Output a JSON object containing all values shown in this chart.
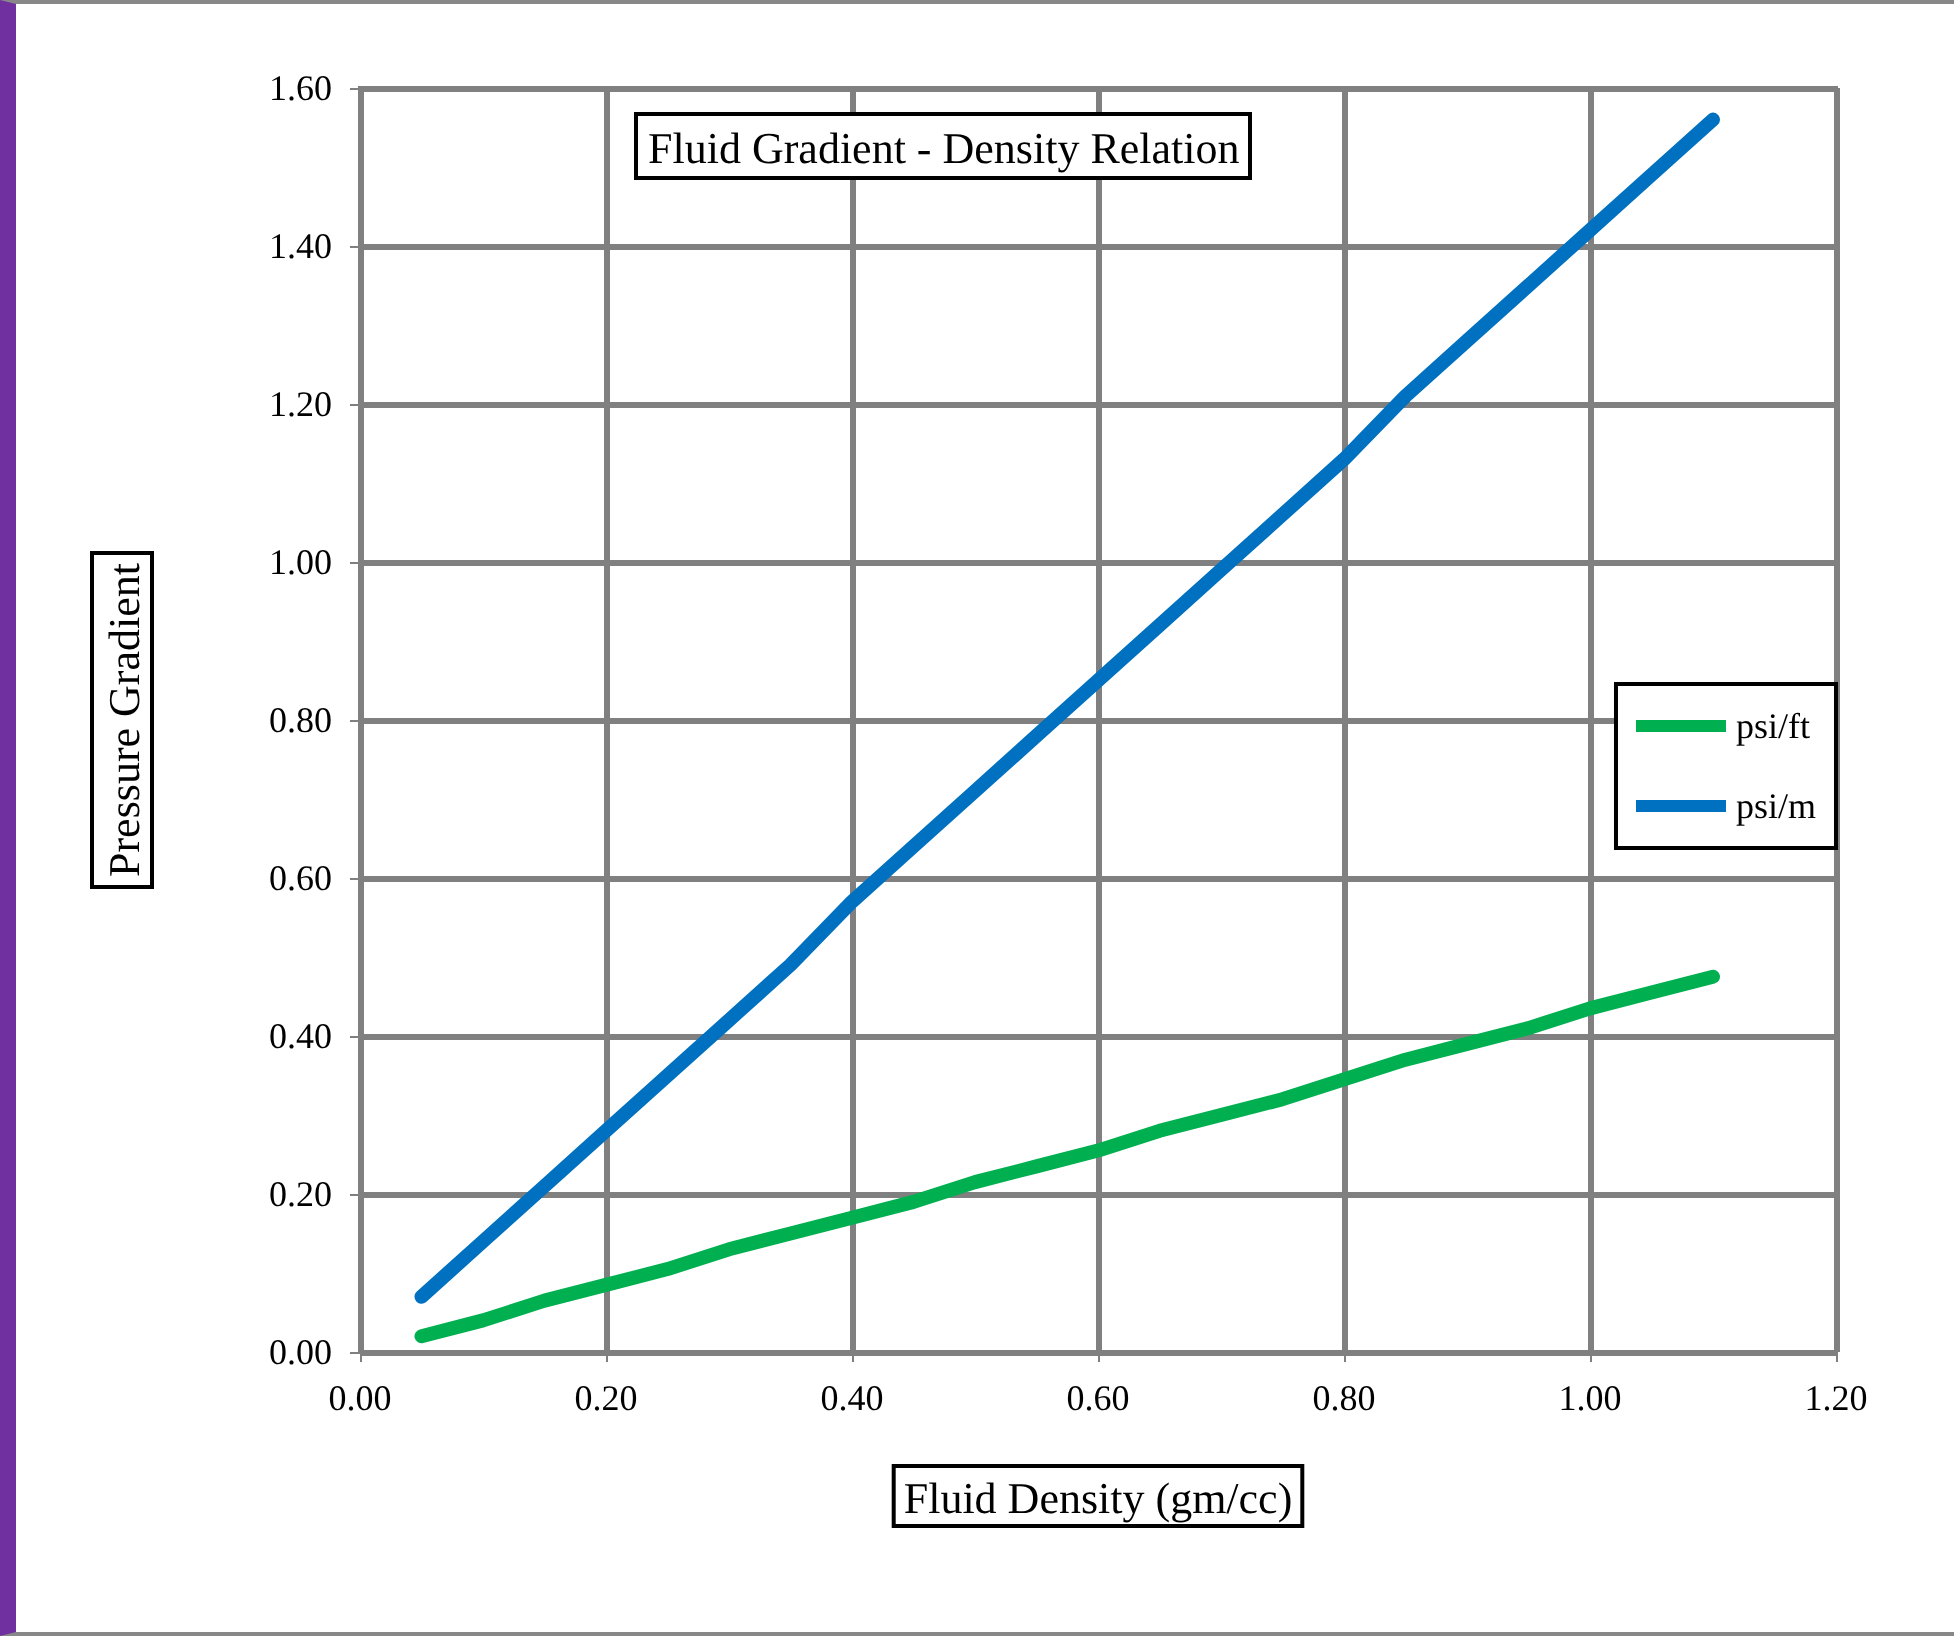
{
  "chart_data": {
    "type": "line",
    "title": "Fluid Gradient - Density Relation",
    "xlabel": "Fluid Density (gm/cc)",
    "ylabel": "Pressure Gradient",
    "x": [
      0.05,
      0.1,
      0.15,
      0.2,
      0.25,
      0.3,
      0.35,
      0.4,
      0.45,
      0.5,
      0.55,
      0.6,
      0.65,
      0.7,
      0.75,
      0.8,
      0.85,
      0.9,
      0.95,
      1.0,
      1.05,
      1.1
    ],
    "series": [
      {
        "name": "psi/ft",
        "color": "#00b050",
        "values": [
          0.02,
          0.04,
          0.065,
          0.085,
          0.105,
          0.13,
          0.15,
          0.17,
          0.19,
          0.215,
          0.235,
          0.255,
          0.28,
          0.3,
          0.32,
          0.345,
          0.37,
          0.39,
          0.41,
          0.435,
          0.455,
          0.475
        ]
      },
      {
        "name": "psi/m",
        "color": "#0070c0",
        "values": [
          0.07,
          0.14,
          0.21,
          0.28,
          0.35,
          0.42,
          0.49,
          0.57,
          0.64,
          0.71,
          0.78,
          0.85,
          0.92,
          0.99,
          1.06,
          1.13,
          1.21,
          1.28,
          1.35,
          1.42,
          1.49,
          1.56
        ]
      }
    ],
    "xlim": [
      0,
      1.2
    ],
    "xticks": [
      {
        "value": 0,
        "label": "0.00"
      },
      {
        "value": 0.2,
        "label": "0.20"
      },
      {
        "value": 0.4,
        "label": "0.40"
      },
      {
        "value": 0.6,
        "label": "0.60"
      },
      {
        "value": 0.8,
        "label": "0.80"
      },
      {
        "value": 1.0,
        "label": "1.00"
      },
      {
        "value": 1.2,
        "label": "1.20"
      }
    ],
    "ylim": [
      0,
      1.6
    ],
    "yticks": [
      {
        "value": 0,
        "label": "0.00"
      },
      {
        "value": 0.2,
        "label": "0.20"
      },
      {
        "value": 0.4,
        "label": "0.40"
      },
      {
        "value": 0.6,
        "label": "0.60"
      },
      {
        "value": 0.8,
        "label": "0.80"
      },
      {
        "value": 1.0,
        "label": "1.00"
      },
      {
        "value": 1.2,
        "label": "1.20"
      },
      {
        "value": 1.4,
        "label": "1.40"
      },
      {
        "value": 1.6,
        "label": "1.60"
      }
    ],
    "grid": true,
    "legend": "right",
    "line_style": "solid"
  }
}
